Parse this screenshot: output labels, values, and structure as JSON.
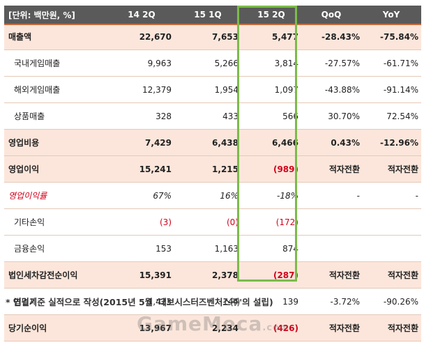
{
  "header": [
    "[단위: 백만원, %]",
    "14 2Q",
    "15 1Q",
    "15 2Q",
    "QoQ",
    "YoY"
  ],
  "rows": [
    {
      "label": "매출액",
      "v": [
        "22,670",
        "7,653",
        "5,477",
        "-28.43%",
        "-75.84%"
      ]
    },
    {
      "label": "국내게임매출",
      "v": [
        "9,963",
        "5,266",
        "3,814",
        "-27.57%",
        "-61.71%"
      ]
    },
    {
      "label": "해외게임매출",
      "v": [
        "12,379",
        "1,954",
        "1,097",
        "-43.88%",
        "-91.14%"
      ]
    },
    {
      "label": "상품매출",
      "v": [
        "328",
        "433",
        "566",
        "30.70%",
        "72.54%"
      ]
    },
    {
      "label": "영업비용",
      "v": [
        "7,429",
        "6,438",
        "6,466",
        "0.43%",
        "-12.96%"
      ]
    },
    {
      "label": "영업이익",
      "v": [
        "15,241",
        "1,215",
        "(989)",
        "적자전환",
        "적자전환"
      ]
    },
    {
      "label": "영업이익률",
      "v": [
        "67%",
        "16%",
        "-18%",
        "-",
        "-"
      ]
    },
    {
      "label": "기타손익",
      "v": [
        "(3)",
        "(0)",
        "(172)",
        "",
        ""
      ]
    },
    {
      "label": "금융손익",
      "v": [
        "153",
        "1,163",
        "874",
        "",
        ""
      ]
    },
    {
      "label": "법인세차감전순이익",
      "v": [
        "15,391",
        "2,378",
        "(287)",
        "적자전환",
        "적자전환"
      ]
    },
    {
      "label": "법인세",
      "v": [
        "1,423",
        "144",
        "139",
        "-3.72%",
        "-90.26%"
      ]
    },
    {
      "label": "당기순이익",
      "v": [
        "13,967",
        "2,234",
        "(426)",
        "적자전환",
        "적자전환"
      ]
    }
  ],
  "footnote": "* 연결기준 실적으로 작성(2015년 5월 '데브시스터즈벤처스㈜'의 설립)",
  "watermark": "GameMeca",
  "watermark_suffix": ".com",
  "colors": {
    "header_bg": "#5a5a5a",
    "highlight_border": "#7cbb4a",
    "bold_row_bg": "#fce6db",
    "negative": "#d0021b"
  }
}
